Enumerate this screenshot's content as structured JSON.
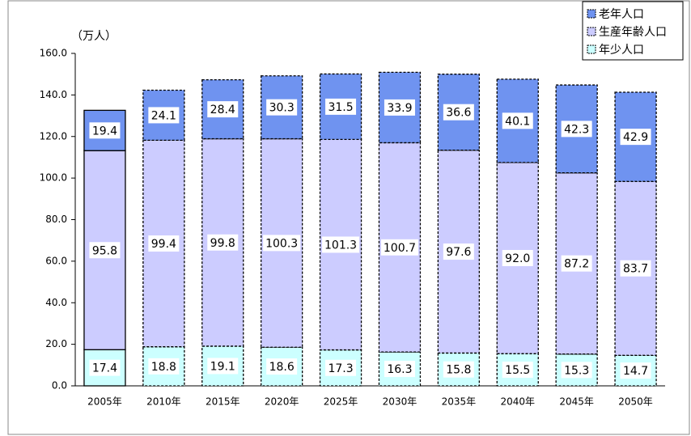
{
  "chart_data": {
    "type": "stacked_bar",
    "y_label": "（万人）",
    "categories": [
      "2005年",
      "2010年",
      "2015年",
      "2020年",
      "2025年",
      "2030年",
      "2035年",
      "2040年",
      "2045年",
      "2050年"
    ],
    "series": [
      {
        "name": "年少人口",
        "color": "#ccffff",
        "values": [
          17.4,
          18.8,
          19.1,
          18.6,
          17.3,
          16.3,
          15.8,
          15.5,
          15.3,
          14.7
        ],
        "value_labels": [
          "17.4",
          "18.8",
          "19.1",
          "18.6",
          "17.3",
          "16.3",
          "15.8",
          "15.5",
          "15.3",
          "14.7"
        ]
      },
      {
        "name": "生産年齢人口",
        "color": "#ccccff",
        "values": [
          95.8,
          99.4,
          99.8,
          100.3,
          101.3,
          100.7,
          97.6,
          92.0,
          87.2,
          83.7
        ],
        "value_labels": [
          "95.8",
          "99.4",
          "99.8",
          "100.3",
          "101.3",
          "100.7",
          "97.6",
          "92.0",
          "87.2",
          "83.7"
        ]
      },
      {
        "name": "老年人口",
        "color": "#6f93f0",
        "values": [
          19.4,
          24.1,
          28.4,
          30.3,
          31.5,
          33.9,
          36.6,
          40.1,
          42.3,
          42.9
        ],
        "value_labels": [
          "19.4",
          "24.1",
          "28.4",
          "30.3",
          "31.5",
          "33.9",
          "36.6",
          "40.1",
          "42.3",
          "42.9"
        ]
      }
    ],
    "ylim": [
      0,
      160
    ],
    "yticks": [
      {
        "value": 0,
        "label": "0.0"
      },
      {
        "value": 20,
        "label": "20.0"
      },
      {
        "value": 40,
        "label": "40.0"
      },
      {
        "value": 60,
        "label": "60.0"
      },
      {
        "value": 80,
        "label": "80.0"
      },
      {
        "value": 100,
        "label": "100.0"
      },
      {
        "value": 120,
        "label": "120.0"
      },
      {
        "value": 140,
        "label": "140.0"
      },
      {
        "value": 160,
        "label": "160.0"
      }
    ],
    "legend": "top-right"
  }
}
